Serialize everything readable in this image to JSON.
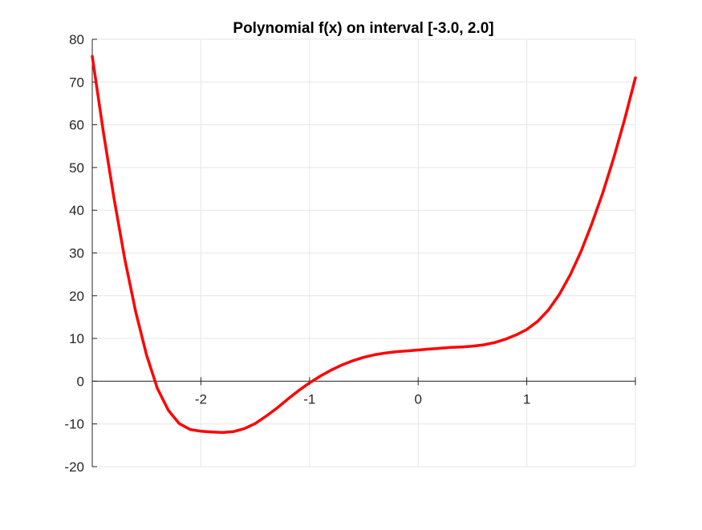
{
  "chart_data": {
    "type": "line",
    "title": "Polynomial f(x) on interval [-3.0, 2.0]",
    "xlabel": "",
    "ylabel": "",
    "xlim": [
      -3,
      2
    ],
    "ylim": [
      -20,
      80
    ],
    "xticks": [
      -2,
      -1,
      0,
      1
    ],
    "xtick_labels": [
      "-2",
      "-1",
      "0",
      "1"
    ],
    "yticks": [
      -20,
      -10,
      0,
      10,
      20,
      30,
      40,
      50,
      60,
      70,
      80
    ],
    "ytick_labels": [
      "-20",
      "-10",
      "0",
      "10",
      "20",
      "30",
      "40",
      "50",
      "60",
      "70",
      "80"
    ],
    "grid": true,
    "axis_location": "origin",
    "series": [
      {
        "color": "#ff0000",
        "x": [
          -3.0,
          -2.9,
          -2.8,
          -2.7,
          -2.6,
          -2.5,
          -2.4,
          -2.3,
          -2.2,
          -2.1,
          -2.0,
          -1.9,
          -1.8,
          -1.7,
          -1.6,
          -1.5,
          -1.4,
          -1.3,
          -1.2,
          -1.1,
          -1.0,
          -0.9,
          -0.8,
          -0.7,
          -0.6,
          -0.5,
          -0.4,
          -0.3,
          -0.2,
          -0.1,
          0.0,
          0.1,
          0.2,
          0.3,
          0.4,
          0.5,
          0.6,
          0.7,
          0.8,
          0.9,
          1.0,
          1.1,
          1.2,
          1.3,
          1.4,
          1.5,
          1.6,
          1.7,
          1.8,
          1.9,
          2.0
        ],
        "y": [
          76.0,
          58.7,
          42.8,
          28.5,
          16.2,
          6.1,
          -1.7,
          -6.8,
          -9.9,
          -11.3,
          -11.7,
          -11.9,
          -12.0,
          -11.8,
          -11.1,
          -9.9,
          -8.2,
          -6.3,
          -4.2,
          -2.2,
          -0.4,
          1.2,
          2.6,
          3.8,
          4.8,
          5.6,
          6.2,
          6.6,
          6.9,
          7.1,
          7.3,
          7.5,
          7.7,
          7.9,
          8.0,
          8.2,
          8.5,
          9.0,
          9.8,
          10.8,
          12.1,
          14.0,
          16.7,
          20.3,
          24.9,
          30.4,
          36.9,
          44.1,
          52.2,
          61.2,
          71.0
        ]
      }
    ]
  }
}
